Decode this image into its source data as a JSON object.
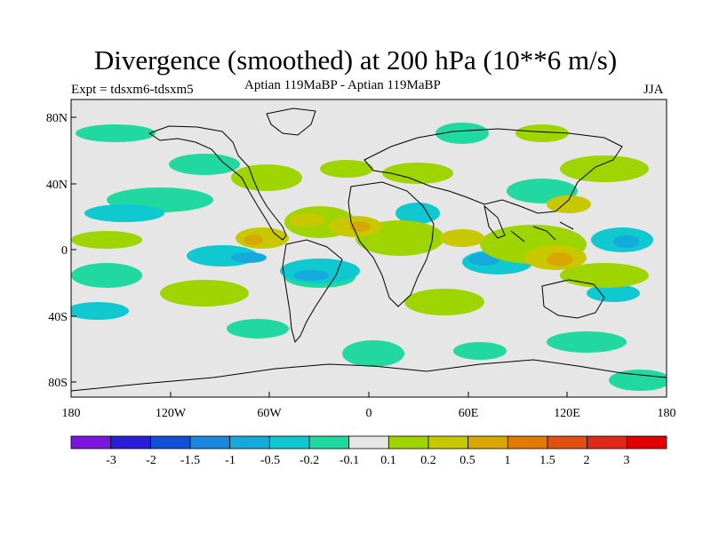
{
  "title": "Divergence (smoothed) at 200 hPa (10**6 m/s)",
  "subtitle_left": "Expt = tdsxm6-tdsxm5",
  "subtitle_center": "Aptian  119MaBP - Aptian  119MaBP",
  "subtitle_right": "JJA",
  "axes": {
    "lat_labels": [
      "80N",
      "40N",
      "0",
      "40S",
      "80S"
    ],
    "lat_values": [
      80,
      40,
      0,
      -40,
      -80
    ],
    "lon_labels": [
      "180",
      "120W",
      "60W",
      "0",
      "60E",
      "120E",
      "180"
    ],
    "lon_values": [
      -180,
      -120,
      -60,
      0,
      60,
      120,
      180
    ]
  },
  "colorbar": {
    "labels": [
      "-3",
      "-2",
      "-1.5",
      "-1",
      "-0.5",
      "-0.2",
      "-0.1",
      "0.1",
      "0.2",
      "0.5",
      "1",
      "1.5",
      "2",
      "3"
    ],
    "colors": [
      "#7a16e0",
      "#2a1ed8",
      "#1050d8",
      "#1a86dc",
      "#14aadc",
      "#10c8d0",
      "#20d8a0",
      "#e6e6e6",
      "#9ed400",
      "#c8c800",
      "#d8a800",
      "#e07a00",
      "#e05010",
      "#e02818",
      "#e00000"
    ]
  },
  "fill_colors": {
    "background": "#e6e6e6",
    "blue": "#14aadc",
    "cyan": "#10c8d0",
    "green": "#20d8a0",
    "lime": "#9ed400",
    "olive": "#c8c800",
    "orange": "#d8a800"
  }
}
